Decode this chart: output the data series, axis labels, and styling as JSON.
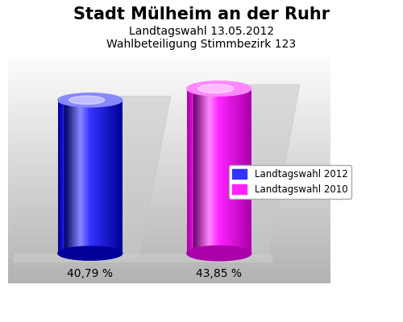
{
  "title": "Stadt Mülheim an der Ruhr",
  "subtitle1": "Landtagswahl 13.05.2012",
  "subtitle2": "Wahlbeteiligung Stimmbezirk 123",
  "values": [
    40.79,
    43.85
  ],
  "bar_colors_main": [
    "#3333ff",
    "#ff22ff"
  ],
  "bar_colors_dark": [
    "#000099",
    "#aa00aa"
  ],
  "bar_colors_light": [
    "#8888ff",
    "#ff88ff"
  ],
  "bar_labels": [
    "40,79 %",
    "43,85 %"
  ],
  "legend_labels": [
    "Landtagswahl 2012",
    "Landtagswahl 2010"
  ],
  "title_fontsize": 15,
  "subtitle_fontsize": 10,
  "label_fontsize": 10,
  "background_color": "#ffffff",
  "shadow_color": "#c8c8cc"
}
